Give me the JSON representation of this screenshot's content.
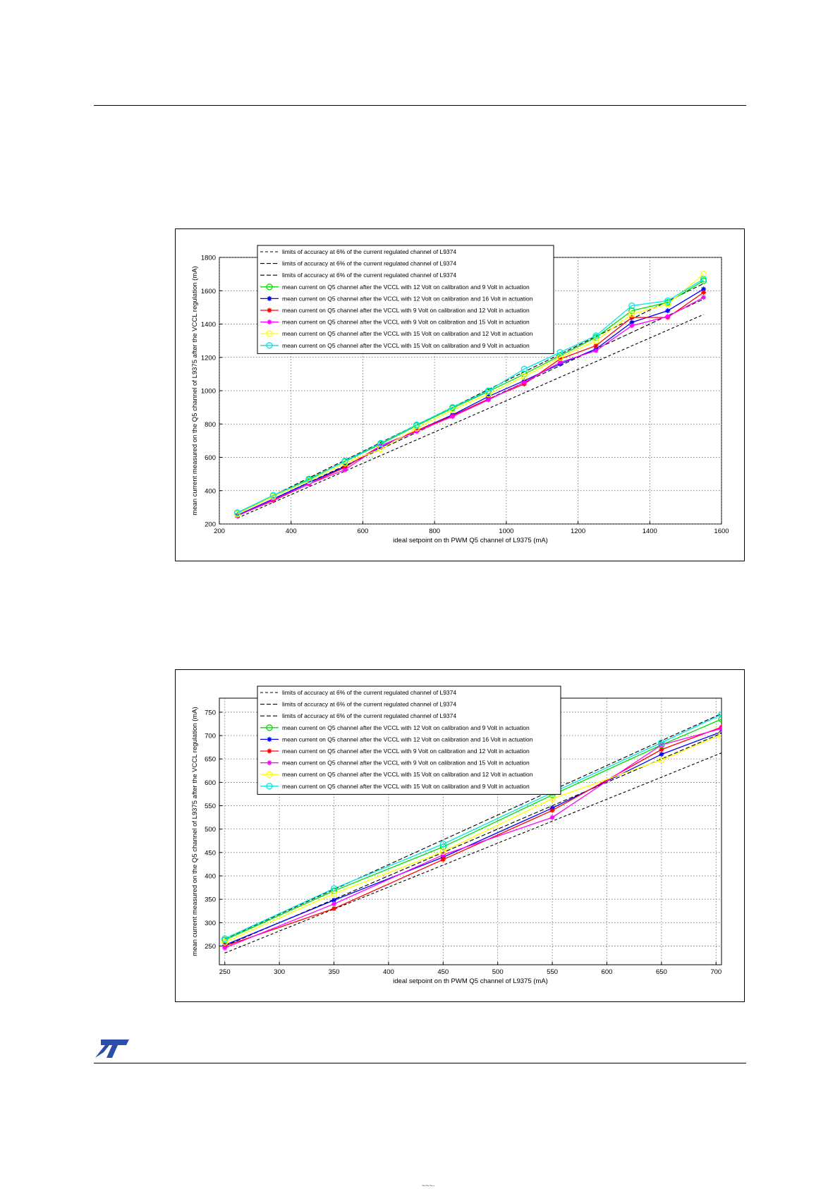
{
  "page": {
    "footer_fragment": "~~~·"
  },
  "logo": {
    "name": "st-logo",
    "color": "#2b4ea8"
  },
  "series_styles": [
    {
      "color": "#000000",
      "dash": "4 3",
      "marker": "none"
    },
    {
      "color": "#000000",
      "dash": "6 3",
      "marker": "none"
    },
    {
      "color": "#000000",
      "dash": "6 3",
      "marker": "none"
    },
    {
      "color": "#00e000",
      "dash": "",
      "marker": "circle"
    },
    {
      "color": "#0000ff",
      "dash": "",
      "marker": "star"
    },
    {
      "color": "#ff0000",
      "dash": "",
      "marker": "star"
    },
    {
      "color": "#ff00ff",
      "dash": "",
      "marker": "star"
    },
    {
      "color": "#ffff00",
      "dash": "",
      "marker": "circle"
    },
    {
      "color": "#00e5e5",
      "dash": "",
      "marker": "circle"
    }
  ],
  "chart_data": [
    {
      "type": "line",
      "xlabel": "ideal setpoint on th PWM Q5 channel of L9375 (mA)",
      "ylabel": "mean current measured on the Q5 channel of L9375 after the VCCL regulation (mA)",
      "xlim": [
        200,
        1600
      ],
      "ylim": [
        200,
        1800
      ],
      "xticks": [
        200,
        400,
        600,
        800,
        1000,
        1200,
        1400,
        1600
      ],
      "yticks": [
        200,
        400,
        600,
        800,
        1000,
        1200,
        1400,
        1600,
        1800
      ],
      "grid": true,
      "legend_position": "top",
      "x": [
        250,
        350,
        450,
        550,
        650,
        750,
        850,
        950,
        1050,
        1150,
        1250,
        1350,
        1450,
        1550
      ],
      "series": [
        {
          "name": "limits of accuracy at 6% of the current regulated channel of L9374",
          "values": [
            235,
            329,
            423,
            517,
            611,
            705,
            799,
            893,
            987,
            1081,
            1175,
            1269,
            1363,
            1457
          ]
        },
        {
          "name": "limits of accuracy at 6% of the current regulated channel of L9374",
          "values": [
            250,
            350,
            450,
            550,
            650,
            750,
            850,
            950,
            1050,
            1150,
            1250,
            1350,
            1450,
            1550
          ]
        },
        {
          "name": "limits of accuracy at 6% of the current regulated channel of L9374",
          "values": [
            265,
            371,
            477,
            583,
            689,
            795,
            901,
            1007,
            1113,
            1219,
            1325,
            1431,
            1537,
            1643
          ]
        },
        {
          "name": "mean current on Q5 channel after the VCCL with 12 Volt on calibration and 9 Volt in actuation",
          "values": [
            263,
            368,
            470,
            575,
            680,
            790,
            895,
            995,
            1100,
            1210,
            1320,
            1480,
            1530,
            1660
          ]
        },
        {
          "name": "mean current on Q5 channel after the VCCL with 12 Volt on calibration and 16 Volt in actuation",
          "values": [
            252,
            350,
            448,
            545,
            660,
            760,
            855,
            965,
            1060,
            1160,
            1250,
            1410,
            1480,
            1610
          ]
        },
        {
          "name": "mean current on Q5 channel after the VCCL with 9 Volt on calibration and 12 Volt in actuation",
          "values": [
            250,
            340,
            440,
            540,
            670,
            760,
            850,
            950,
            1040,
            1190,
            1270,
            1440,
            1440,
            1590
          ]
        },
        {
          "name": "mean current on Q5 channel after the VCCL with 9 Volt on calibration and 15 Volt in actuation",
          "values": [
            248,
            345,
            440,
            525,
            670,
            755,
            845,
            945,
            1050,
            1170,
            1240,
            1390,
            1445,
            1560
          ]
        },
        {
          "name": "mean current on Q5 channel after the VCCL with 15 Volt on calibration and 12 Volt in actuation",
          "values": [
            260,
            365,
            460,
            565,
            650,
            775,
            885,
            980,
            1085,
            1200,
            1300,
            1460,
            1520,
            1700
          ]
        },
        {
          "name": "mean current on Q5 channel after the VCCL with 15 Volt on calibration and 9 Volt in actuation",
          "values": [
            268,
            372,
            465,
            578,
            685,
            795,
            900,
            1000,
            1130,
            1230,
            1330,
            1510,
            1540,
            1670
          ]
        }
      ]
    },
    {
      "type": "line",
      "xlabel": "ideal setpoint on th PWM Q5 channel of L9375 (mA)",
      "ylabel": "mean current measured on the Q5 channel of L9375 after the VCCL regulation (mA)",
      "xlim": [
        245,
        705
      ],
      "ylim": [
        210,
        780
      ],
      "xticks": [
        250,
        300,
        350,
        400,
        450,
        500,
        550,
        600,
        650,
        700
      ],
      "yticks": [
        250,
        300,
        350,
        400,
        450,
        500,
        550,
        600,
        650,
        700,
        750
      ],
      "grid": true,
      "legend_position": "top",
      "x": [
        250,
        350,
        450,
        550,
        650,
        705
      ],
      "series": [
        {
          "name": "limits of accuracy at 6% of the current regulated channel of L9374",
          "values": [
            235,
            329,
            423,
            517,
            611,
            663
          ]
        },
        {
          "name": "limits of accuracy at 6% of the current regulated channel of L9374",
          "values": [
            250,
            350,
            450,
            550,
            650,
            705
          ]
        },
        {
          "name": "limits of accuracy at 6% of the current regulated channel of L9374",
          "values": [
            265,
            371,
            477,
            583,
            689,
            747
          ]
        },
        {
          "name": "mean current on Q5 channel after the VCCL with 12 Volt on calibration and 9 Volt in actuation",
          "values": [
            263,
            368,
            462,
            573,
            680,
            735
          ]
        },
        {
          "name": "mean current on Q5 channel after the VCCL with 12 Volt on calibration and 16 Volt in actuation",
          "values": [
            252,
            348,
            440,
            545,
            660,
            708
          ]
        },
        {
          "name": "mean current on Q5 channel after the VCCL with 9 Volt on calibration and 12 Volt in actuation",
          "values": [
            250,
            330,
            435,
            540,
            670,
            718
          ]
        },
        {
          "name": "mean current on Q5 channel after the VCCL with 9 Volt on calibration and 15 Volt in actuation",
          "values": [
            246,
            340,
            445,
            525,
            680,
            715
          ]
        },
        {
          "name": "mean current on Q5 channel after the VCCL with 15 Volt on calibration and 12 Volt in actuation",
          "values": [
            258,
            362,
            452,
            565,
            648,
            702
          ]
        },
        {
          "name": "mean current on Q5 channel after the VCCL with 15 Volt on calibration and 9 Volt in actuation",
          "values": [
            266,
            373,
            468,
            578,
            685,
            745
          ]
        }
      ]
    }
  ]
}
